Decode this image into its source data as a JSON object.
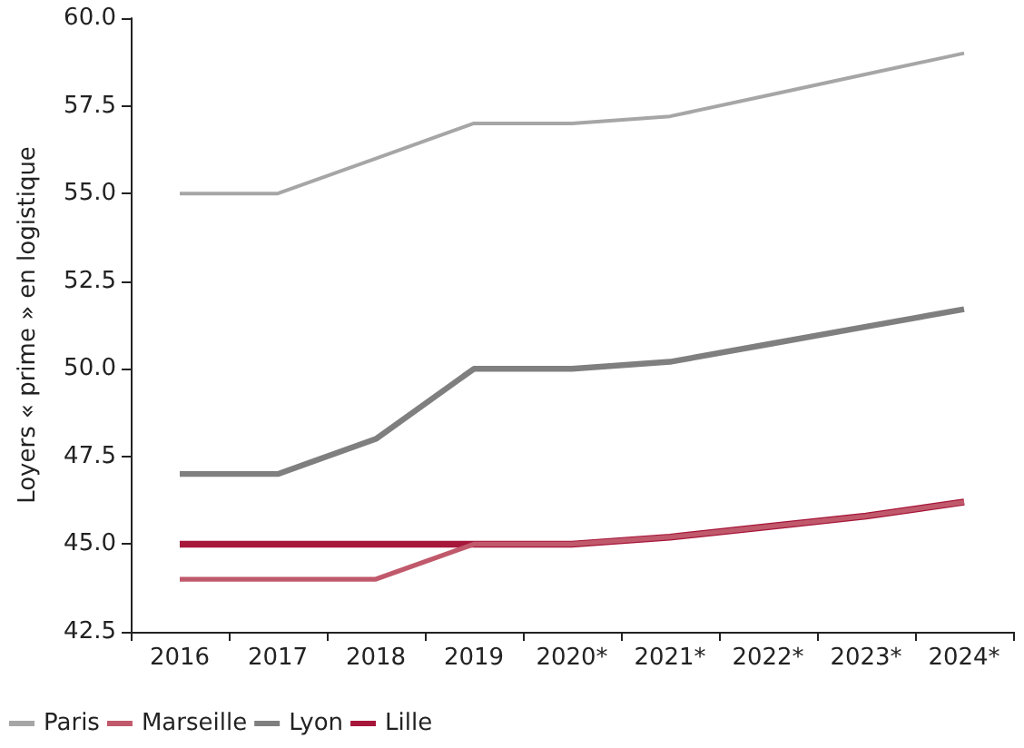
{
  "chart_data": {
    "type": "line",
    "ylabel": "Loyers « prime » en logistique",
    "categories": [
      "2016",
      "2017",
      "2018",
      "2019",
      "2020*",
      "2021*",
      "2022*",
      "2023*",
      "2024*"
    ],
    "series": [
      {
        "name": "Paris",
        "color": "#a6a6a6",
        "values": [
          55,
          55,
          56,
          57,
          57,
          57.2,
          57.8,
          58.4,
          59
        ]
      },
      {
        "name": "Marseille",
        "color": "#c0596b",
        "values": [
          44,
          44,
          44,
          45,
          45,
          45.2,
          45.5,
          45.8,
          46.2
        ]
      },
      {
        "name": "Lyon",
        "color": "#7f7f7f",
        "values": [
          47,
          47,
          48,
          50,
          50,
          50.2,
          50.7,
          51.2,
          51.7
        ]
      },
      {
        "name": "Lille",
        "color": "#a6173a",
        "values": [
          45,
          45,
          45,
          45,
          45,
          45.2,
          45.5,
          45.8,
          46.2
        ]
      }
    ],
    "ylim": [
      42.5,
      60
    ],
    "yticks": [
      {
        "value": 42.5,
        "label": "42.5"
      },
      {
        "value": 45,
        "label": "45.0"
      },
      {
        "value": 47.5,
        "label": "47.5"
      },
      {
        "value": 50,
        "label": "50.0"
      },
      {
        "value": 52.5,
        "label": "52.5"
      },
      {
        "value": 55,
        "label": "55.0"
      },
      {
        "value": 57.5,
        "label": "57.5"
      },
      {
        "value": 60,
        "label": "60.0"
      }
    ],
    "grid": false,
    "legend": "bottom left",
    "marker": "none",
    "line_style": "solid"
  }
}
